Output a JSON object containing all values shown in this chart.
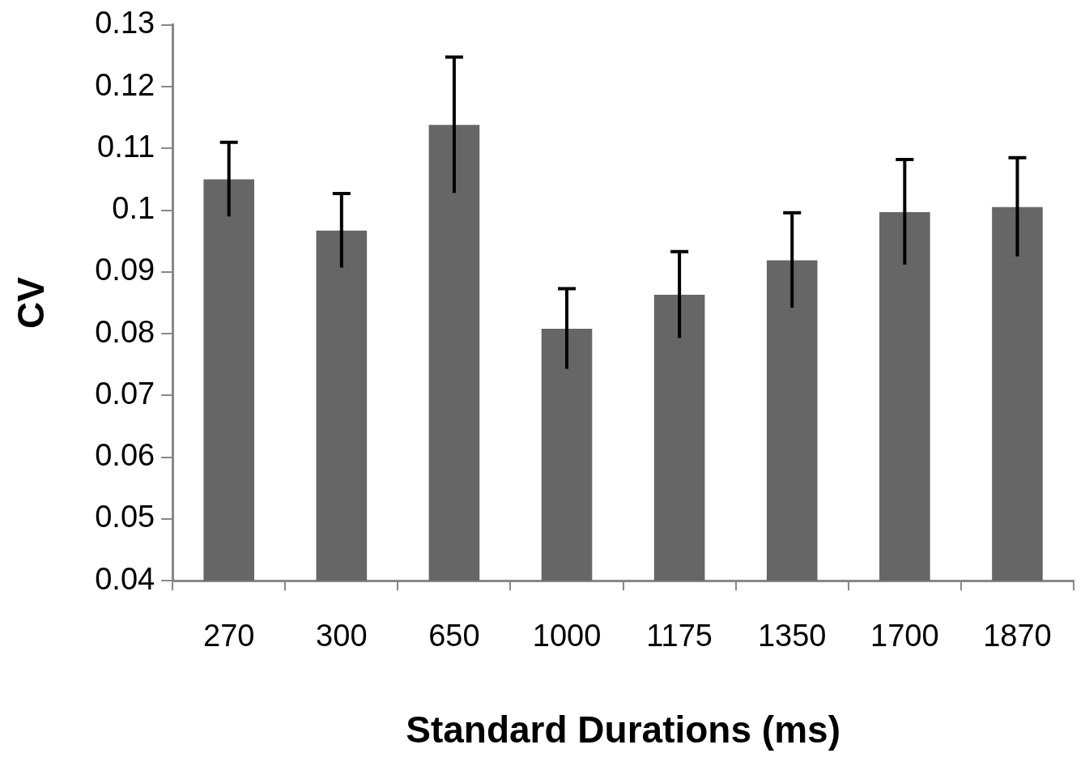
{
  "chart_data": {
    "type": "bar",
    "xlabel": "Standard Durations (ms)",
    "ylabel": "CV",
    "categories": [
      "270",
      "300",
      "650",
      "1000",
      "1175",
      "1350",
      "1700",
      "1870"
    ],
    "values": [
      0.105,
      0.0967,
      0.1138,
      0.0808,
      0.0863,
      0.0919,
      0.0997,
      0.1005
    ],
    "errors": [
      0.006,
      0.006,
      0.011,
      0.0065,
      0.007,
      0.0077,
      0.0085,
      0.008
    ],
    "color": "#666666",
    "ylim": [
      0.04,
      0.13
    ],
    "yticks": [
      0.04,
      0.05,
      0.06,
      0.07,
      0.08,
      0.09,
      0.1,
      0.11,
      0.12,
      0.13
    ],
    "grid": false,
    "legend": false
  }
}
